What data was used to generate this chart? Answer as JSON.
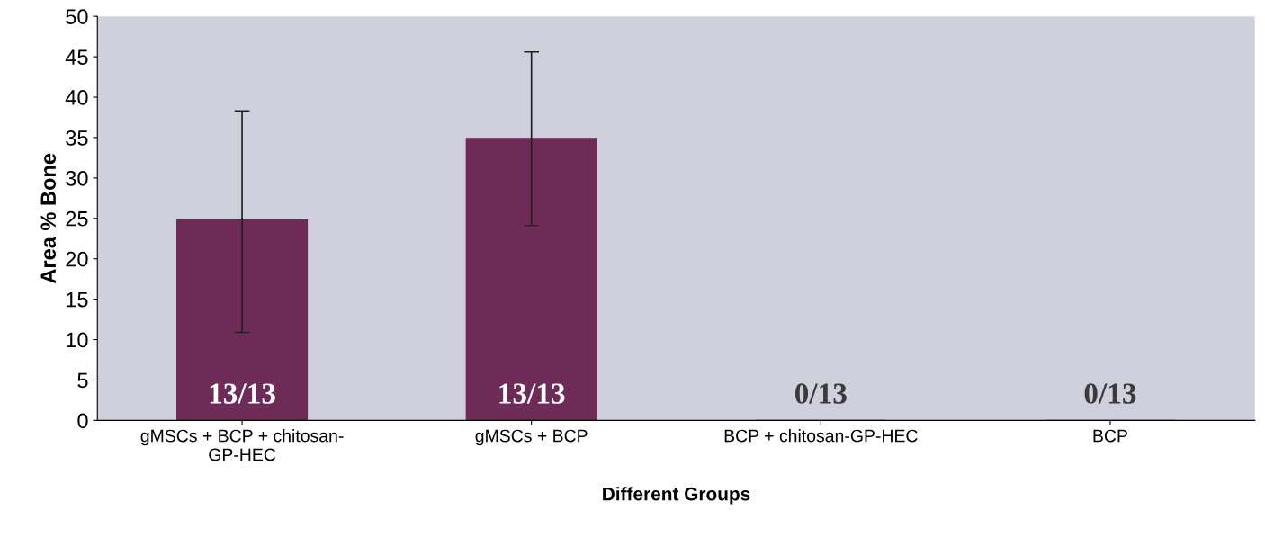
{
  "chart_data": {
    "type": "bar",
    "xlabel": "Different Groups",
    "ylabel": "Area % Bone",
    "categories": [
      "gMSCs + BCP + chitosan-\nGP-HEC",
      "gMSCs + BCP",
      "BCP + chitosan-GP-HEC",
      "BCP"
    ],
    "values": [
      24.8,
      34.9,
      0,
      0
    ],
    "errors": [
      [
        10.9,
        38.3
      ],
      [
        24.1,
        45.6
      ],
      null,
      null
    ],
    "color": "#6e2b57",
    "ylim": [
      0,
      50
    ],
    "yticks": [
      0,
      5,
      10,
      15,
      20,
      25,
      30,
      35,
      40,
      45,
      50
    ],
    "grid": false,
    "annotations": [
      "13/13",
      "13/13",
      "0/13",
      "0/13"
    ]
  }
}
